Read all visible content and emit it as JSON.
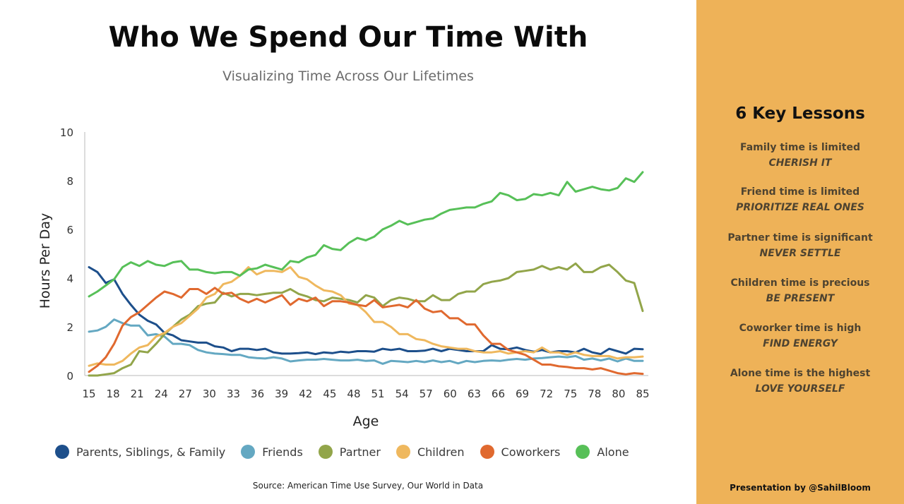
{
  "header": {
    "title": "Who We Spend Our Time With",
    "subtitle": "Visualizing Time Across Our Lifetimes"
  },
  "source": "Source: American Time Use Survey, Our World in Data",
  "sidebar": {
    "title": "6 Key Lessons",
    "lessons": [
      {
        "head": "Family time is limited",
        "action": "CHERISH IT"
      },
      {
        "head": "Friend time is limited",
        "action": "PRIORITIZE REAL ONES"
      },
      {
        "head": "Partner time is significant",
        "action": "NEVER SETTLE"
      },
      {
        "head": "Children time is precious",
        "action": "BE PRESENT"
      },
      {
        "head": "Coworker time is high",
        "action": "FIND ENERGY"
      },
      {
        "head": "Alone time is the highest",
        "action": "LOVE YOURSELF"
      }
    ],
    "credit": "Presentation by @SahilBloom"
  },
  "colors": {
    "sidebar_bg": "#eeb258"
  },
  "chart_data": {
    "type": "line",
    "xlabel": "Age",
    "ylabel": "Hours Per Day",
    "xlim": [
      15,
      85
    ],
    "ylim": [
      0,
      10
    ],
    "xticks": [
      "15",
      "18",
      "21",
      "24",
      "27",
      "30",
      "33",
      "36",
      "39",
      "42",
      "45",
      "48",
      "51",
      "54",
      "57",
      "60",
      "63",
      "66",
      "69",
      "72",
      "75",
      "78",
      "80",
      "85"
    ],
    "yticks": [
      "0",
      "2",
      "4",
      "6",
      "8",
      "10"
    ],
    "grid": false,
    "legend_position": "bottom",
    "x": [
      15,
      16,
      17,
      18,
      19,
      20,
      21,
      22,
      23,
      24,
      25,
      26,
      27,
      28,
      29,
      30,
      31,
      32,
      33,
      34,
      35,
      36,
      37,
      38,
      39,
      40,
      41,
      42,
      43,
      44,
      45,
      46,
      47,
      48,
      49,
      50,
      51,
      52,
      53,
      54,
      55,
      56,
      57,
      58,
      59,
      60,
      61,
      62,
      63,
      64,
      65,
      66,
      67,
      68,
      69,
      70,
      71,
      72,
      73,
      74,
      75,
      76,
      77,
      78,
      79,
      80,
      81
    ],
    "series": [
      {
        "name": "Parents, Siblings, & Family",
        "color": "#1d4f8b",
        "values": [
          4.45,
          4.25,
          3.8,
          3.95,
          3.35,
          2.9,
          2.5,
          2.25,
          2.1,
          1.75,
          1.65,
          1.45,
          1.4,
          1.35,
          1.35,
          1.2,
          1.15,
          1.0,
          1.1,
          1.1,
          1.05,
          1.1,
          0.95,
          0.9,
          0.9,
          0.92,
          0.95,
          0.88,
          0.95,
          0.92,
          0.98,
          0.95,
          1.0,
          1.0,
          0.98,
          1.1,
          1.05,
          1.1,
          1.0,
          1.0,
          1.02,
          1.1,
          1.0,
          1.1,
          1.05,
          1.0,
          1.0,
          1.0,
          1.25,
          1.1,
          1.08,
          1.15,
          1.05,
          0.98,
          1.05,
          0.95,
          1.0,
          1.0,
          0.95,
          1.1,
          0.95,
          0.88,
          1.1,
          1.0,
          0.9,
          1.1,
          1.08
        ]
      },
      {
        "name": "Friends",
        "color": "#64a8c2",
        "values": [
          1.8,
          1.85,
          2.0,
          2.3,
          2.15,
          2.05,
          2.05,
          1.65,
          1.7,
          1.6,
          1.3,
          1.3,
          1.25,
          1.05,
          0.95,
          0.9,
          0.88,
          0.85,
          0.85,
          0.75,
          0.72,
          0.7,
          0.75,
          0.7,
          0.58,
          0.62,
          0.65,
          0.65,
          0.68,
          0.65,
          0.62,
          0.62,
          0.65,
          0.6,
          0.62,
          0.48,
          0.6,
          0.58,
          0.55,
          0.6,
          0.55,
          0.62,
          0.55,
          0.6,
          0.5,
          0.6,
          0.55,
          0.6,
          0.62,
          0.6,
          0.65,
          0.68,
          0.65,
          0.7,
          0.72,
          0.75,
          0.78,
          0.75,
          0.8,
          0.65,
          0.7,
          0.62,
          0.7,
          0.58,
          0.7,
          0.6,
          0.6
        ]
      },
      {
        "name": "Partner",
        "color": "#92a54a",
        "values": [
          0.0,
          0.0,
          0.05,
          0.1,
          0.3,
          0.45,
          1.0,
          0.95,
          1.3,
          1.7,
          2.0,
          2.3,
          2.5,
          2.85,
          2.95,
          3.0,
          3.4,
          3.25,
          3.35,
          3.35,
          3.3,
          3.35,
          3.4,
          3.4,
          3.55,
          3.35,
          3.25,
          3.1,
          3.05,
          3.2,
          3.15,
          3.1,
          3.0,
          3.3,
          3.2,
          2.85,
          3.1,
          3.2,
          3.15,
          3.05,
          3.05,
          3.3,
          3.1,
          3.1,
          3.35,
          3.45,
          3.45,
          3.75,
          3.85,
          3.9,
          4.0,
          4.25,
          4.3,
          4.35,
          4.5,
          4.35,
          4.45,
          4.35,
          4.6,
          4.25,
          4.25,
          4.45,
          4.55,
          4.25,
          3.9,
          3.8,
          2.65
        ]
      },
      {
        "name": "Children",
        "color": "#efb85e",
        "values": [
          0.4,
          0.5,
          0.45,
          0.45,
          0.6,
          0.9,
          1.15,
          1.25,
          1.6,
          1.75,
          2.0,
          2.15,
          2.45,
          2.75,
          3.2,
          3.35,
          3.75,
          3.85,
          4.1,
          4.45,
          4.15,
          4.3,
          4.3,
          4.25,
          4.45,
          4.05,
          3.95,
          3.7,
          3.5,
          3.45,
          3.3,
          2.95,
          2.9,
          2.6,
          2.2,
          2.2,
          2.0,
          1.7,
          1.7,
          1.5,
          1.45,
          1.3,
          1.2,
          1.15,
          1.1,
          1.1,
          1.0,
          0.95,
          0.95,
          1.0,
          0.9,
          0.95,
          1.0,
          0.95,
          1.15,
          0.95,
          0.95,
          0.85,
          0.95,
          0.85,
          0.8,
          0.8,
          0.8,
          0.7,
          0.75,
          0.75,
          0.78
        ]
      },
      {
        "name": "Coworkers",
        "color": "#e0692f",
        "values": [
          0.15,
          0.4,
          0.75,
          1.3,
          2.05,
          2.4,
          2.6,
          2.9,
          3.2,
          3.45,
          3.35,
          3.2,
          3.55,
          3.55,
          3.35,
          3.6,
          3.35,
          3.4,
          3.15,
          3.0,
          3.15,
          3.0,
          3.15,
          3.3,
          2.9,
          3.15,
          3.05,
          3.2,
          2.85,
          3.05,
          3.05,
          3.0,
          2.9,
          2.85,
          3.1,
          2.8,
          2.85,
          2.9,
          2.8,
          3.1,
          2.75,
          2.6,
          2.65,
          2.35,
          2.35,
          2.1,
          2.1,
          1.65,
          1.3,
          1.3,
          1.05,
          0.95,
          0.85,
          0.65,
          0.45,
          0.45,
          0.38,
          0.35,
          0.3,
          0.3,
          0.25,
          0.3,
          0.2,
          0.1,
          0.05,
          0.1,
          0.07
        ]
      },
      {
        "name": "Alone",
        "color": "#57c058",
        "values": [
          3.25,
          3.45,
          3.7,
          3.95,
          4.45,
          4.65,
          4.5,
          4.7,
          4.55,
          4.5,
          4.65,
          4.7,
          4.35,
          4.35,
          4.25,
          4.2,
          4.25,
          4.25,
          4.1,
          4.35,
          4.4,
          4.55,
          4.45,
          4.35,
          4.7,
          4.65,
          4.85,
          4.95,
          5.35,
          5.2,
          5.15,
          5.45,
          5.65,
          5.55,
          5.7,
          6.0,
          6.15,
          6.35,
          6.2,
          6.3,
          6.4,
          6.45,
          6.65,
          6.8,
          6.85,
          6.9,
          6.9,
          7.05,
          7.15,
          7.5,
          7.4,
          7.2,
          7.25,
          7.45,
          7.4,
          7.5,
          7.4,
          7.95,
          7.55,
          7.65,
          7.75,
          7.65,
          7.6,
          7.7,
          8.1,
          7.95,
          8.35
        ]
      }
    ]
  }
}
